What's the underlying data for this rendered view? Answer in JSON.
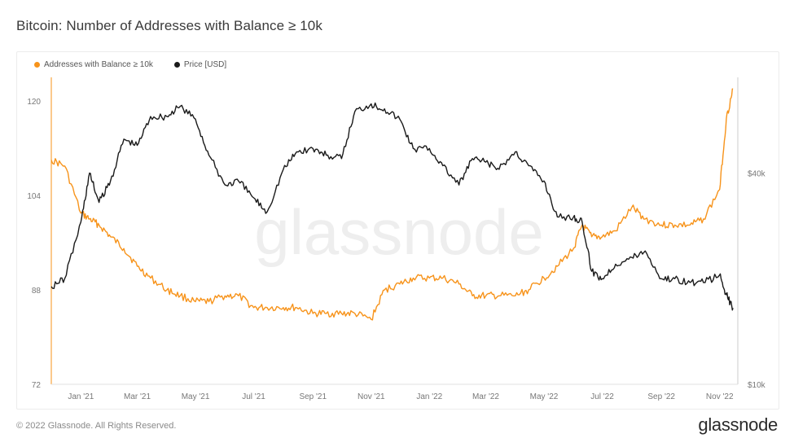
{
  "title": "Bitcoin: Number of Addresses with Balance ≥ 10k",
  "footer": "© 2022 Glassnode. All Rights Reserved.",
  "brand": "glassnode",
  "watermark": "glassnode",
  "colors": {
    "addresses": "#f7931a",
    "price": "#1a1a1a"
  },
  "chart_data": {
    "type": "line",
    "xlabel": "",
    "ylabel_left": "",
    "ylabel_right": "",
    "x_ticks": [
      "Jan '21",
      "Mar '21",
      "May '21",
      "Jul '21",
      "Sep '21",
      "Nov '21",
      "Jan '22",
      "Mar '22",
      "May '22",
      "Jul '22",
      "Sep '22",
      "Nov '22"
    ],
    "y_left_ticks": [
      72,
      88,
      104,
      120
    ],
    "y_left_range": [
      72,
      124
    ],
    "y_right_ticks": [
      "$10k",
      "$40k"
    ],
    "y_right_scale": "log",
    "y_right_range": [
      10000,
      75000
    ],
    "legend": [
      "Addresses with Balance ≥ 10k",
      "Price [USD]"
    ],
    "legend_position": "top-left",
    "grid": false,
    "series": [
      {
        "name": "Addresses with Balance ≥ 10k",
        "axis": "left",
        "x": [
          "2020-12-01",
          "2020-12-15",
          "2021-01-01",
          "2021-01-10",
          "2021-01-20",
          "2021-02-01",
          "2021-02-15",
          "2021-03-01",
          "2021-03-15",
          "2021-04-01",
          "2021-04-15",
          "2021-05-01",
          "2021-05-15",
          "2021-06-01",
          "2021-06-15",
          "2021-07-01",
          "2021-07-15",
          "2021-08-01",
          "2021-08-15",
          "2021-09-01",
          "2021-09-15",
          "2021-10-01",
          "2021-10-15",
          "2021-11-01",
          "2021-11-15",
          "2021-12-01",
          "2021-12-15",
          "2022-01-01",
          "2022-01-15",
          "2022-02-01",
          "2022-02-15",
          "2022-03-01",
          "2022-03-15",
          "2022-04-01",
          "2022-04-15",
          "2022-05-01",
          "2022-05-15",
          "2022-06-01",
          "2022-06-10",
          "2022-06-20",
          "2022-07-01",
          "2022-07-15",
          "2022-08-01",
          "2022-08-15",
          "2022-09-01",
          "2022-09-15",
          "2022-10-01",
          "2022-10-15",
          "2022-11-01",
          "2022-11-08",
          "2022-11-15"
        ],
        "values": [
          110,
          109,
          101,
          100,
          99,
          97,
          95,
          92,
          90,
          88,
          87,
          86,
          86,
          87,
          87,
          85,
          85,
          85,
          85,
          84,
          84,
          84,
          84,
          83,
          88,
          89,
          90,
          90,
          90,
          89,
          87,
          87,
          87,
          87,
          88,
          90,
          92,
          95,
          99,
          97,
          97,
          98,
          102,
          100,
          99,
          99,
          99,
          100,
          105,
          117,
          122
        ]
      },
      {
        "name": "Price [USD]",
        "axis": "right",
        "x": [
          "2020-12-01",
          "2020-12-15",
          "2021-01-01",
          "2021-01-10",
          "2021-01-20",
          "2021-02-01",
          "2021-02-15",
          "2021-03-01",
          "2021-03-15",
          "2021-04-01",
          "2021-04-15",
          "2021-05-01",
          "2021-05-15",
          "2021-06-01",
          "2021-06-15",
          "2021-07-01",
          "2021-07-15",
          "2021-08-01",
          "2021-08-15",
          "2021-09-01",
          "2021-09-15",
          "2021-10-01",
          "2021-10-15",
          "2021-11-01",
          "2021-11-15",
          "2021-12-01",
          "2021-12-15",
          "2022-01-01",
          "2022-01-15",
          "2022-02-01",
          "2022-02-15",
          "2022-03-01",
          "2022-03-15",
          "2022-04-01",
          "2022-04-15",
          "2022-05-01",
          "2022-05-15",
          "2022-06-01",
          "2022-06-10",
          "2022-06-20",
          "2022-07-01",
          "2022-07-15",
          "2022-08-01",
          "2022-08-15",
          "2022-09-01",
          "2022-09-15",
          "2022-10-01",
          "2022-10-15",
          "2022-11-01",
          "2022-11-08",
          "2022-11-15"
        ],
        "values": [
          19000,
          20000,
          29000,
          40000,
          33000,
          38000,
          50000,
          48000,
          58000,
          58000,
          62000,
          57000,
          45000,
          37000,
          38000,
          34000,
          31000,
          41000,
          46000,
          47000,
          45000,
          44000,
          60000,
          63000,
          61000,
          57000,
          47000,
          47000,
          42000,
          37000,
          44000,
          43000,
          41000,
          46000,
          42000,
          38000,
          30000,
          30000,
          29000,
          21000,
          20000,
          22000,
          23000,
          24000,
          20000,
          20000,
          19500,
          19500,
          20500,
          18000,
          16500
        ]
      }
    ]
  }
}
